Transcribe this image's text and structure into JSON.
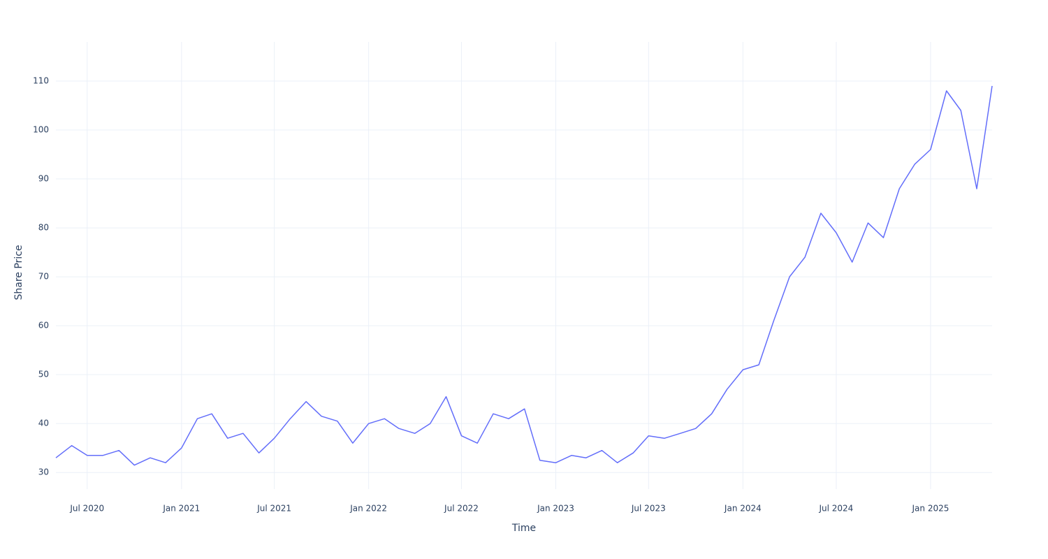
{
  "chart_data": {
    "type": "line",
    "xlabel": "Time",
    "ylabel": "Share Price",
    "x": [
      "2020-05",
      "2020-06",
      "2020-07",
      "2020-08",
      "2020-09",
      "2020-10",
      "2020-11",
      "2020-12",
      "2021-01",
      "2021-02",
      "2021-03",
      "2021-04",
      "2021-05",
      "2021-06",
      "2021-07",
      "2021-08",
      "2021-09",
      "2021-10",
      "2021-11",
      "2021-12",
      "2022-01",
      "2022-02",
      "2022-03",
      "2022-04",
      "2022-05",
      "2022-06",
      "2022-07",
      "2022-08",
      "2022-09",
      "2022-10",
      "2022-11",
      "2022-12",
      "2023-01",
      "2023-02",
      "2023-03",
      "2023-04",
      "2023-05",
      "2023-06",
      "2023-07",
      "2023-08",
      "2023-09",
      "2023-10",
      "2023-11",
      "2023-12",
      "2024-01",
      "2024-02",
      "2024-03",
      "2024-04",
      "2024-05",
      "2024-06",
      "2024-07",
      "2024-08",
      "2024-09",
      "2024-10",
      "2024-11",
      "2024-12",
      "2025-01",
      "2025-02",
      "2025-03",
      "2025-04",
      "2025-05"
    ],
    "series": [
      {
        "color": "#636efa",
        "values": [
          33,
          35.5,
          33.5,
          33.5,
          34.5,
          31.5,
          33,
          32,
          35,
          41,
          42,
          37,
          38,
          34,
          37,
          41,
          44.5,
          41.5,
          40.5,
          36,
          40,
          41,
          39,
          38,
          40,
          45.5,
          37.5,
          36,
          42,
          41,
          43,
          32.5,
          32,
          33.5,
          33,
          34.5,
          32,
          34,
          37.5,
          37,
          38,
          39,
          42,
          47,
          51,
          52,
          61,
          70,
          74,
          83,
          79,
          73,
          81,
          78,
          88,
          93,
          96,
          108,
          104,
          88,
          109
        ]
      }
    ],
    "xlim": [
      "2020-05",
      "2025-05"
    ],
    "xticks": [
      {
        "value": "2020-07",
        "label": "Jul 2020"
      },
      {
        "value": "2021-01",
        "label": "Jan 2021"
      },
      {
        "value": "2021-07",
        "label": "Jul 2021"
      },
      {
        "value": "2022-01",
        "label": "Jan 2022"
      },
      {
        "value": "2022-07",
        "label": "Jul 2022"
      },
      {
        "value": "2023-01",
        "label": "Jan 2023"
      },
      {
        "value": "2023-07",
        "label": "Jul 2023"
      },
      {
        "value": "2024-01",
        "label": "Jan 2024"
      },
      {
        "value": "2024-07",
        "label": "Jul 2024"
      },
      {
        "value": "2025-01",
        "label": "Jan 2025"
      }
    ],
    "ylim": [
      26.6,
      118
    ],
    "yticks": [
      30,
      40,
      50,
      60,
      70,
      80,
      90,
      100,
      110
    ],
    "grid": true
  }
}
